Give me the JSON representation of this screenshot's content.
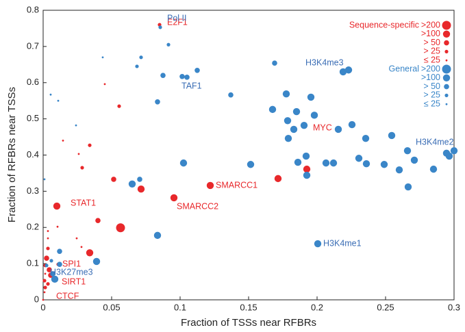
{
  "chart_data": {
    "type": "scatter",
    "xlabel": "Fraction of TSSs near RFBRs",
    "ylabel": "Fraction of RFBRs near TSSs",
    "xlim": [
      0,
      0.3
    ],
    "ylim": [
      0,
      0.8
    ],
    "xticks": [
      0,
      0.05,
      0.1,
      0.15,
      0.2,
      0.25,
      0.3
    ],
    "yticks": [
      0,
      0.1,
      0.2,
      0.3,
      0.4,
      0.5,
      0.6,
      0.7,
      0.8
    ],
    "size_legend": [
      {
        "value": 200,
        "label": ">200"
      },
      {
        "value": 100,
        "label": ">100"
      },
      {
        "value": 50,
        "label": "> 50"
      },
      {
        "value": 25,
        "label": "> 25"
      },
      {
        "value": 25,
        "label": "≤ 25"
      }
    ],
    "series": [
      {
        "name": "Sequence-specific",
        "color": "#e8282b",
        "x": [
          0.085,
          0.045,
          0.0555,
          0.0145,
          0.034,
          0.026,
          0.0285,
          0.0515,
          0.0715,
          0.0955,
          0.122,
          0.1925,
          0.1715,
          0.01,
          0.04,
          0.0565,
          0.0105,
          0.0245,
          0.028,
          0.034,
          0.0035,
          0.0035,
          0.0035,
          0.0025,
          0.0015,
          0.011,
          0.0045,
          0.0055,
          0.001,
          0.0015,
          0.0035,
          0.001,
          0,
          0.0015
        ],
        "values": [
          0.76,
          0.596,
          0.535,
          0.44,
          0.427,
          0.403,
          0.365,
          0.333,
          0.306,
          0.282,
          0.316,
          0.361,
          0.335,
          0.259,
          0.219,
          0.199,
          0.202,
          0.17,
          0.146,
          0.13,
          0.19,
          0.17,
          0.142,
          0.115,
          0.095,
          0.098,
          0.083,
          0.068,
          0.053,
          0.034,
          0.044,
          0.021,
          0,
          0.072
        ],
        "sizes": [
          35,
          15,
          35,
          15,
          35,
          15,
          35,
          75,
          150,
          150,
          150,
          150,
          150,
          150,
          75,
          300,
          15,
          15,
          15,
          150,
          15,
          15,
          35,
          75,
          35,
          35,
          75,
          75,
          35,
          35,
          35,
          15,
          15,
          15
        ]
      },
      {
        "name": "General",
        "color": "#3a86c8",
        "x": [
          0.0855,
          0.0915,
          0.0435,
          0.0715,
          0.0685,
          0.0875,
          0.1015,
          0.105,
          0.1125,
          0.169,
          0.219,
          0.223,
          0.137,
          0.0835,
          0.0055,
          0.011,
          0.024,
          0.1775,
          0.1955,
          0.1675,
          0.185,
          0.198,
          0.1785,
          0.1905,
          0.183,
          0.2155,
          0.2255,
          0.179,
          0.2355,
          0.2545,
          0.192,
          0.186,
          0.2065,
          0.212,
          0.2305,
          0.236,
          0.249,
          0.26,
          0.266,
          0.271,
          0.285,
          0.2945,
          0.2965,
          0.3,
          0.1925,
          0.1025,
          0.1515,
          0.2665,
          0.065,
          0.0705,
          0.001,
          0.0835,
          0.2005,
          0.012,
          0.039,
          0.006,
          0.012,
          0.007,
          0.0085,
          0.0025
        ],
        "values": [
          0.753,
          0.705,
          0.67,
          0.67,
          0.645,
          0.62,
          0.617,
          0.615,
          0.634,
          0.654,
          0.63,
          0.635,
          0.566,
          0.547,
          0.567,
          0.55,
          0.482,
          0.569,
          0.56,
          0.526,
          0.52,
          0.51,
          0.495,
          0.482,
          0.471,
          0.471,
          0.484,
          0.446,
          0.446,
          0.454,
          0.397,
          0.38,
          0.378,
          0.378,
          0.391,
          0.376,
          0.374,
          0.359,
          0.412,
          0.386,
          0.361,
          0.405,
          0.397,
          0.412,
          0.344,
          0.378,
          0.374,
          0.312,
          0.32,
          0.333,
          0.333,
          0.178,
          0.155,
          0.134,
          0.106,
          0.108,
          0.098,
          0.072,
          0.057,
          0.095
        ],
        "sizes": [
          35,
          35,
          15,
          35,
          35,
          75,
          75,
          75,
          75,
          75,
          150,
          150,
          75,
          75,
          15,
          15,
          15,
          150,
          150,
          150,
          150,
          150,
          150,
          150,
          150,
          150,
          150,
          150,
          150,
          150,
          150,
          150,
          150,
          150,
          150,
          150,
          150,
          150,
          150,
          150,
          150,
          150,
          150,
          150,
          150,
          150,
          150,
          150,
          150,
          75,
          15,
          150,
          150,
          75,
          150,
          35,
          75,
          75,
          150,
          35
        ]
      }
    ],
    "annotations": [
      {
        "text": "E2F1",
        "color": "#e8282b"
      },
      {
        "text": "MYC",
        "color": "#e8282b"
      },
      {
        "text": "SMARCC1",
        "color": "#e8282b"
      },
      {
        "text": "SMARCC2",
        "color": "#e8282b"
      },
      {
        "text": "STAT1",
        "color": "#e8282b"
      },
      {
        "text": "SPI1",
        "color": "#e8282b"
      },
      {
        "text": "SIRT1",
        "color": "#e8282b"
      },
      {
        "text": "CTCF",
        "color": "#e8282b"
      },
      {
        "text": "Pol II",
        "color": "#3a6db5"
      },
      {
        "text": "TAF1",
        "color": "#3a6db5"
      },
      {
        "text": "H3K4me3",
        "color": "#3a6db5"
      },
      {
        "text": "H3K4me2",
        "color": "#3a6db5"
      },
      {
        "text": "H3K4me1",
        "color": "#3a6db5"
      },
      {
        "text": "H3K27me3",
        "color": "#3a6db5"
      }
    ]
  }
}
